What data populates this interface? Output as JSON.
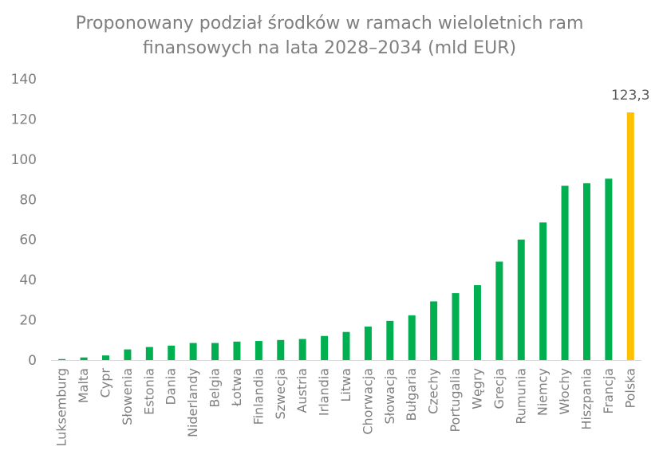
{
  "chart_data": {
    "type": "bar",
    "title_line1": "Proponowany podział środków w ramach wieloletnich ram",
    "title_line2": "finansowych na lata 2028–2034 (mld EUR)",
    "xlabel": "",
    "ylabel": "",
    "ylim": [
      0,
      140
    ],
    "yticks": [
      0,
      20,
      40,
      60,
      80,
      100,
      120,
      140
    ],
    "grid": false,
    "legend": "none",
    "categories": [
      "Luksemburg",
      "Malta",
      "Cypr",
      "Słowenia",
      "Estonia",
      "Dania",
      "Niderlandy",
      "Belgia",
      "Łotwa",
      "Finlandia",
      "Szwecja",
      "Austria",
      "Irlandia",
      "Litwa",
      "Chorwacja",
      "Słowacja",
      "Bułgaria",
      "Czechy",
      "Portugalia",
      "Węgry",
      "Grecja",
      "Rumunia",
      "Niemcy",
      "Włochy",
      "Hiszpania",
      "Francja",
      "Polska"
    ],
    "values": [
      0.5,
      1.3,
      2.3,
      5.3,
      6.5,
      7.2,
      8.5,
      8.5,
      9.2,
      9.5,
      10.0,
      10.5,
      12.0,
      14.0,
      16.7,
      19.5,
      22.3,
      29.2,
      33.3,
      37.3,
      49.0,
      60.0,
      68.5,
      86.8,
      88.0,
      90.3,
      123.3
    ],
    "data_labels": [
      {
        "index": 26,
        "text": "123,3"
      }
    ],
    "colors": {
      "default": "#00b050",
      "highlight": "#ffc000",
      "highlight_index": 26,
      "axis": "#d9d9d9",
      "text": "#7f7f7f"
    }
  }
}
